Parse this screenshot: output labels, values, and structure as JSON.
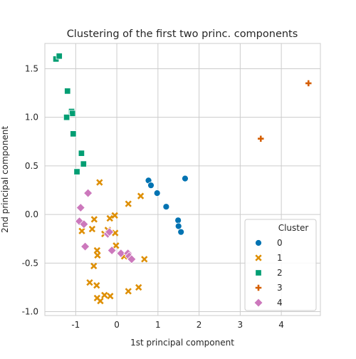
{
  "chart_data": {
    "type": "scatter",
    "title": "Clustering of the first two princ. components",
    "xlabel": "1st principal component",
    "ylabel": "2nd principal component",
    "xlim": [
      -1.75,
      4.95
    ],
    "ylim": [
      -1.04,
      1.76
    ],
    "xticks": [
      -1,
      0,
      1,
      2,
      3,
      4
    ],
    "yticks": [
      -1.0,
      -0.5,
      0.0,
      0.5,
      1.0,
      1.5
    ],
    "grid": true,
    "legend": {
      "title": "Cluster",
      "position": "lower-right"
    },
    "series": [
      {
        "name": "0",
        "color": "#0173b2",
        "marker": "circle",
        "points": [
          [
            0.77,
            0.35
          ],
          [
            0.83,
            0.3
          ],
          [
            0.98,
            0.22
          ],
          [
            1.2,
            0.08
          ],
          [
            1.66,
            0.37
          ],
          [
            1.49,
            -0.06
          ],
          [
            1.5,
            -0.12
          ],
          [
            1.56,
            -0.18
          ]
        ]
      },
      {
        "name": "1",
        "color": "#de8f05",
        "marker": "x",
        "points": [
          [
            -0.42,
            0.33
          ],
          [
            0.28,
            0.11
          ],
          [
            0.58,
            0.19
          ],
          [
            -0.05,
            -0.01
          ],
          [
            -0.17,
            -0.04
          ],
          [
            -0.55,
            -0.05
          ],
          [
            -0.85,
            -0.17
          ],
          [
            -0.6,
            -0.15
          ],
          [
            -0.3,
            -0.2
          ],
          [
            -0.22,
            -0.16
          ],
          [
            -0.04,
            -0.19
          ],
          [
            -0.48,
            -0.37
          ],
          [
            -0.47,
            -0.42
          ],
          [
            -0.02,
            -0.32
          ],
          [
            0.18,
            -0.43
          ],
          [
            0.67,
            -0.46
          ],
          [
            -0.56,
            -0.53
          ],
          [
            -0.66,
            -0.7
          ],
          [
            -0.49,
            -0.73
          ],
          [
            -0.3,
            -0.83
          ],
          [
            -0.16,
            -0.84
          ],
          [
            -0.48,
            -0.86
          ],
          [
            -0.4,
            -0.89
          ],
          [
            0.28,
            -0.79
          ],
          [
            0.53,
            -0.75
          ]
        ]
      },
      {
        "name": "2",
        "color": "#029e73",
        "marker": "square",
        "points": [
          [
            -1.48,
            1.6
          ],
          [
            -1.4,
            1.63
          ],
          [
            -1.2,
            1.27
          ],
          [
            -1.1,
            1.06
          ],
          [
            -1.08,
            1.04
          ],
          [
            -1.22,
            1.0
          ],
          [
            -1.06,
            0.83
          ],
          [
            -0.86,
            0.63
          ],
          [
            -0.81,
            0.52
          ],
          [
            -0.97,
            0.44
          ]
        ]
      },
      {
        "name": "3",
        "color": "#d55e00",
        "marker": "plus",
        "points": [
          [
            4.66,
            1.35
          ],
          [
            3.5,
            0.78
          ]
        ]
      },
      {
        "name": "4",
        "color": "#cc78bc",
        "marker": "diamond",
        "points": [
          [
            -0.7,
            0.22
          ],
          [
            -0.88,
            0.07
          ],
          [
            -0.91,
            -0.07
          ],
          [
            -0.8,
            -0.1
          ],
          [
            -0.77,
            -0.33
          ],
          [
            -0.22,
            -0.2
          ],
          [
            -0.18,
            -0.18
          ],
          [
            -0.12,
            -0.37
          ],
          [
            0.1,
            -0.4
          ],
          [
            0.27,
            -0.4
          ],
          [
            0.3,
            -0.43
          ],
          [
            0.36,
            -0.46
          ]
        ]
      }
    ]
  }
}
